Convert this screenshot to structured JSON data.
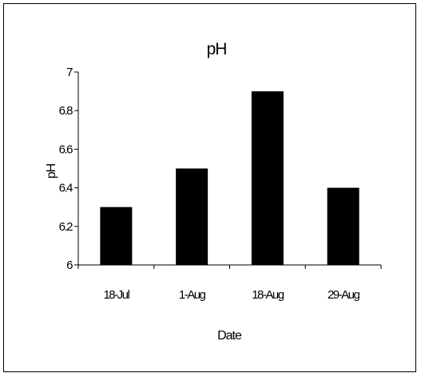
{
  "chart_data": {
    "type": "bar",
    "title": "pH",
    "xlabel": "Date",
    "ylabel": "pH",
    "categories": [
      "18-Jul",
      "1-Aug",
      "18-Aug",
      "29-Aug"
    ],
    "values": [
      6.3,
      6.5,
      6.9,
      6.4
    ],
    "ylim": [
      6,
      7
    ],
    "yticks": [
      6,
      6.2,
      6.4,
      6.6,
      6.8,
      7
    ],
    "ytick_labels": [
      "6",
      "6.2",
      "6.4",
      "6.6",
      "6.8",
      "7"
    ],
    "grid": false,
    "legend": "none",
    "bar_color": "#000000"
  }
}
